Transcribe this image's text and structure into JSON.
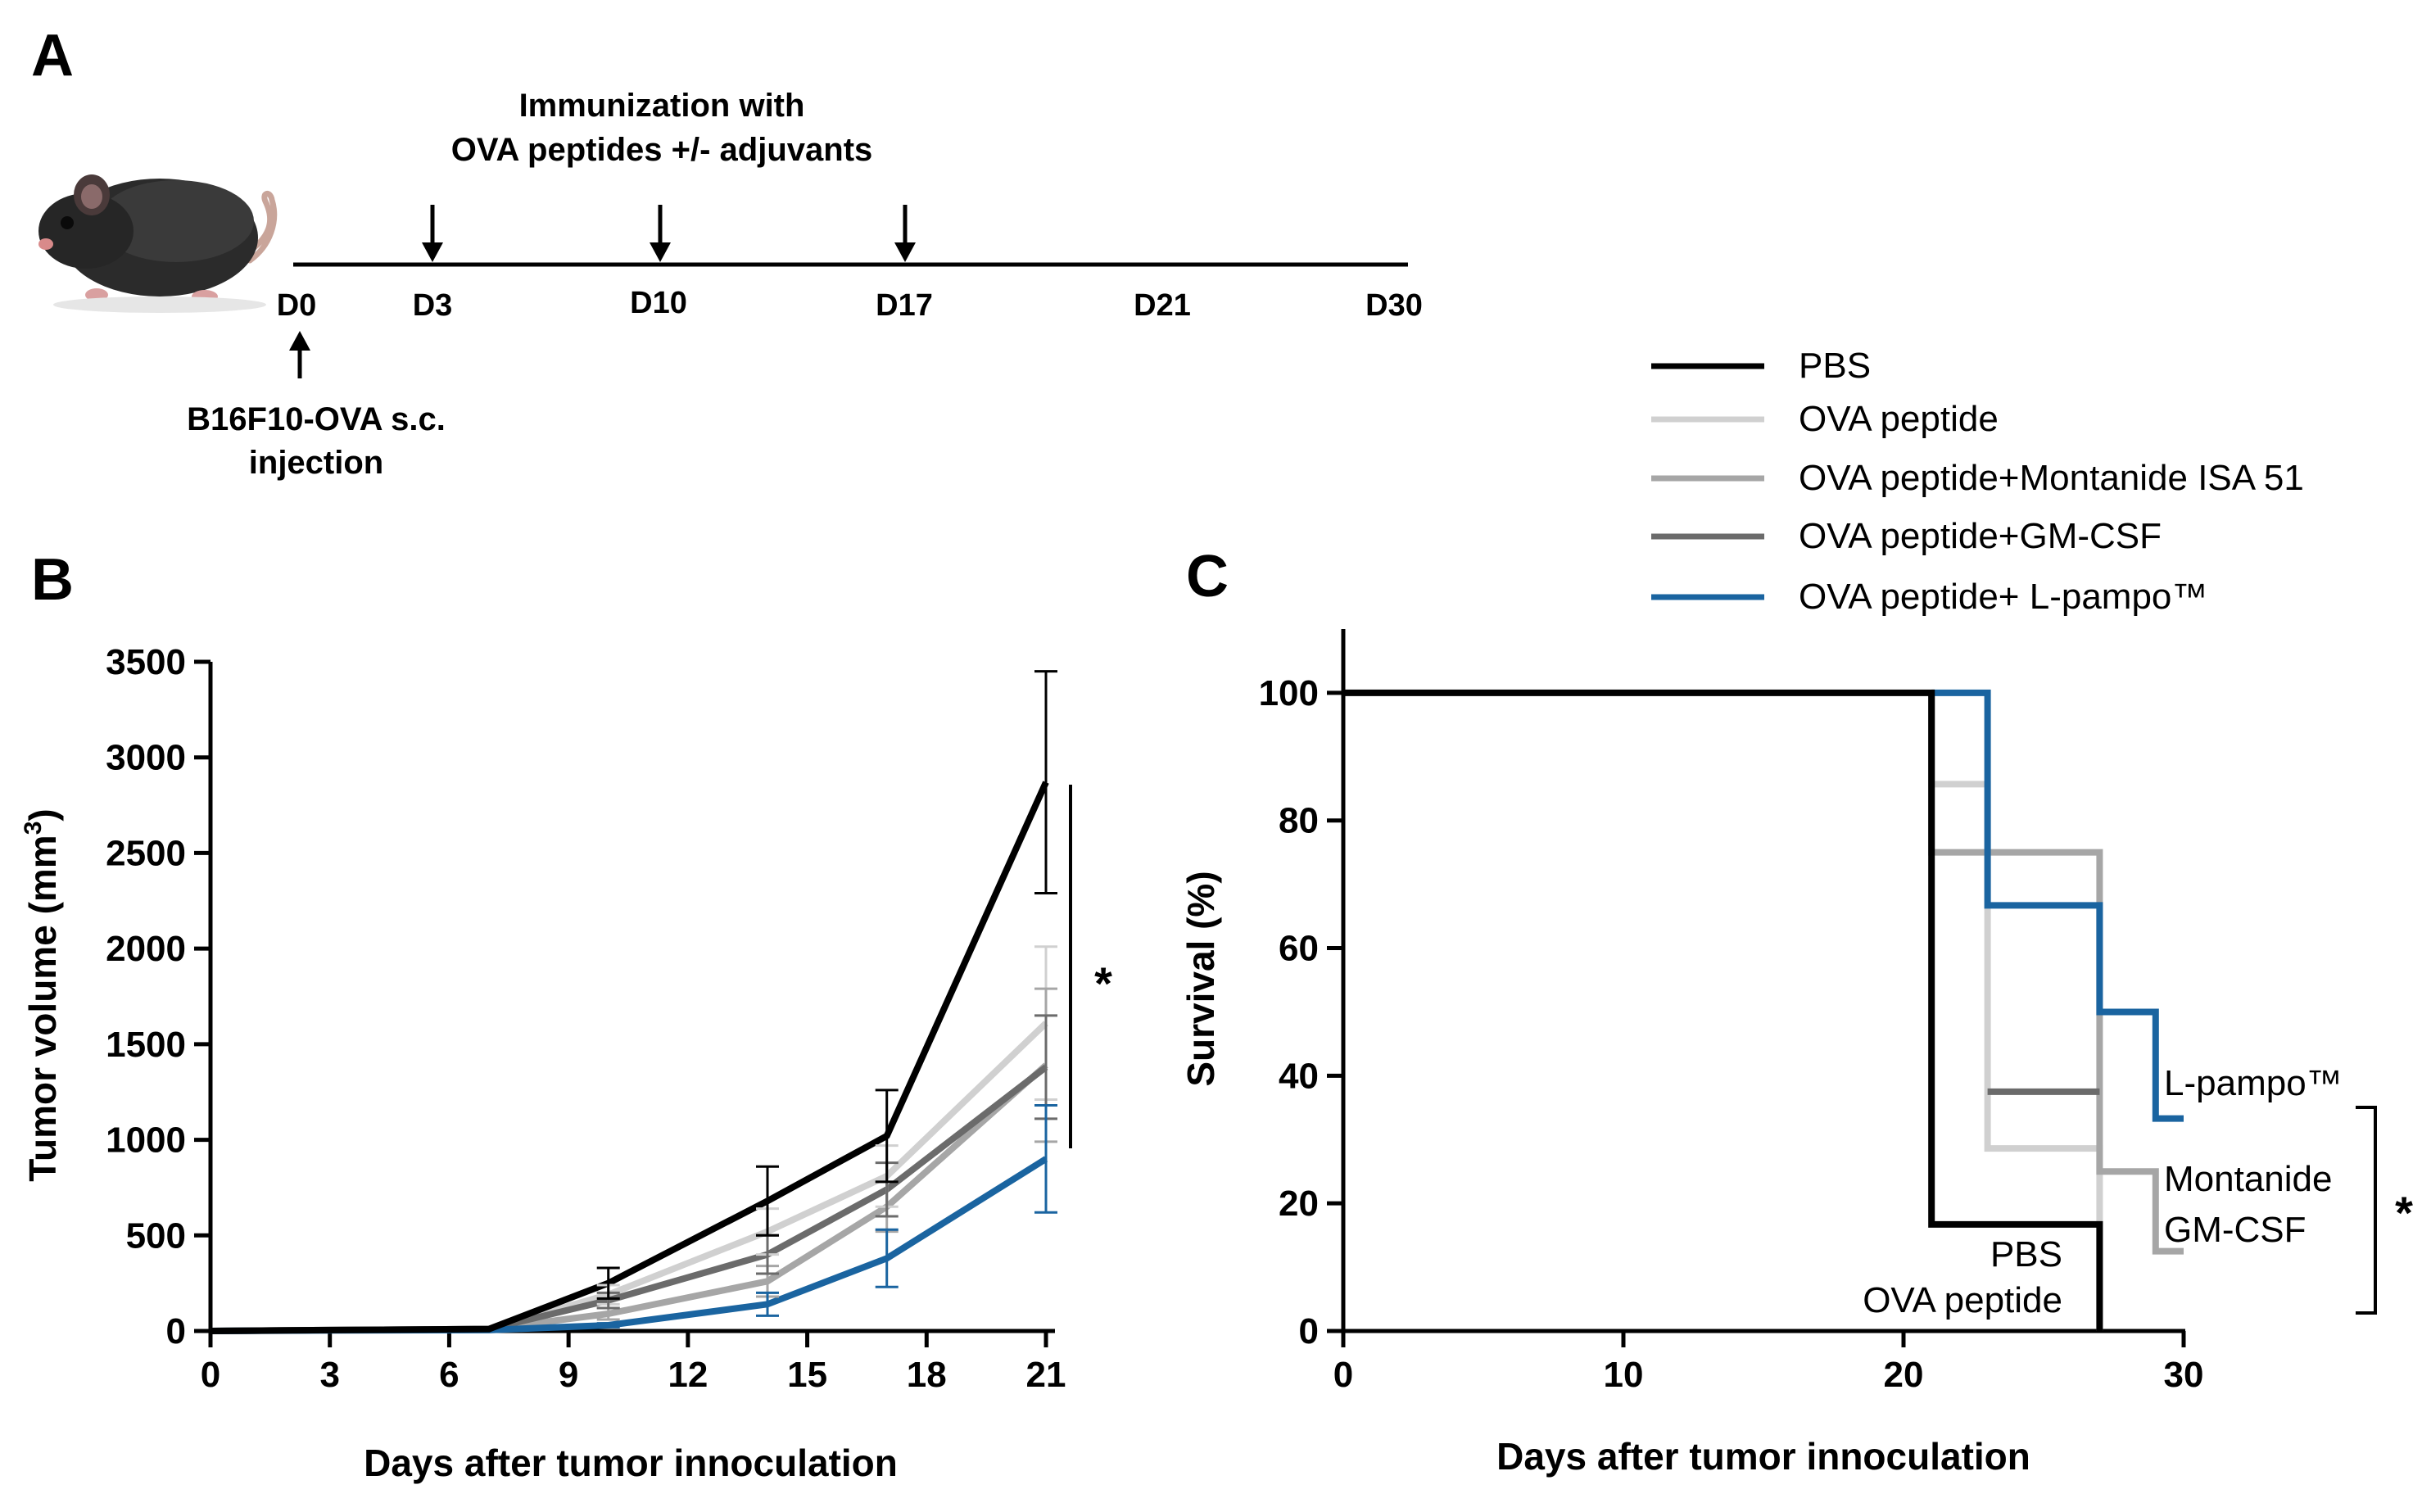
{
  "panel_a": {
    "letter": "A",
    "immunization_line1": "Immunization with",
    "immunization_line2": "OVA peptides +/- adjuvants",
    "days": [
      "D0",
      "D3",
      "D10",
      "D17",
      "D21",
      "D30"
    ],
    "injection_line1": "B16F10-OVA s.c.",
    "injection_line2": "injection",
    "mouse_icon": "mouse-icon"
  },
  "legend": [
    {
      "label": "PBS",
      "color": "#000000"
    },
    {
      "label": "OVA peptide",
      "color": "#d0d0d0"
    },
    {
      "label": "OVA peptide+Montanide ISA 51",
      "color": "#a6a6a6"
    },
    {
      "label": "OVA peptide+GM-CSF",
      "color": "#6b6b6b"
    },
    {
      "label": "OVA peptide+ L-pampo™",
      "color": "#1a64a0"
    }
  ],
  "chart_data": [
    {
      "panel": "B",
      "type": "line",
      "title": "",
      "xlabel": "Days after tumor innoculation",
      "ylabel": "Tumor volume (mm³)",
      "ylabel_main": "Tumor volume (mm",
      "ylabel_sup": "3",
      "ylabel_end": ")",
      "xlim": [
        0,
        21
      ],
      "ylim": [
        0,
        3500
      ],
      "xticks": [
        0,
        3,
        6,
        9,
        12,
        15,
        18,
        21
      ],
      "yticks": [
        0,
        500,
        1000,
        1500,
        2000,
        2500,
        3000,
        3500
      ],
      "x": [
        0,
        3,
        7,
        10,
        14,
        17,
        21
      ],
      "series": [
        {
          "name": "PBS",
          "color": "#000000",
          "values": [
            0,
            5,
            10,
            250,
            680,
            1020,
            2870
          ],
          "err": [
            0,
            0,
            0,
            80,
            180,
            240,
            580
          ]
        },
        {
          "name": "OVA peptide",
          "color": "#d0d0d0",
          "values": [
            0,
            5,
            10,
            190,
            520,
            810,
            1610
          ],
          "err": [
            0,
            0,
            0,
            50,
            120,
            160,
            400
          ]
        },
        {
          "name": "OVA peptide+Montanide ISA 51",
          "color": "#a6a6a6",
          "values": [
            0,
            5,
            10,
            90,
            260,
            650,
            1390
          ],
          "err": [
            0,
            0,
            0,
            30,
            80,
            130,
            400
          ]
        },
        {
          "name": "OVA peptide+GM-CSF",
          "color": "#6b6b6b",
          "values": [
            0,
            5,
            10,
            160,
            400,
            740,
            1380
          ],
          "err": [
            0,
            0,
            0,
            40,
            100,
            140,
            270
          ]
        },
        {
          "name": "OVA peptide+ L-pampo™",
          "color": "#1a64a0",
          "values": [
            0,
            3,
            5,
            30,
            140,
            380,
            900
          ],
          "err": [
            0,
            0,
            0,
            10,
            60,
            150,
            280
          ]
        }
      ],
      "significance": "*"
    },
    {
      "panel": "C",
      "type": "line",
      "step": true,
      "title": "",
      "xlabel": "Days after tumor innoculation",
      "ylabel": "Survival (%)",
      "xlim": [
        0,
        30
      ],
      "ylim": [
        0,
        110
      ],
      "xticks": [
        0,
        10,
        20,
        30
      ],
      "yticks": [
        0,
        20,
        40,
        60,
        80,
        100
      ],
      "series": [
        {
          "name": "PBS",
          "color": "#000000",
          "points": [
            [
              0,
              100
            ],
            [
              21,
              100
            ],
            [
              21,
              16.7
            ],
            [
              27,
              16.7
            ],
            [
              27,
              0
            ]
          ]
        },
        {
          "name": "OVA peptide",
          "color": "#d0d0d0",
          "points": [
            [
              21,
              100
            ],
            [
              21,
              85.7
            ],
            [
              23,
              85.7
            ],
            [
              23,
              28.6
            ],
            [
              27,
              28.6
            ],
            [
              27,
              0
            ]
          ]
        },
        {
          "name": "OVA peptide+Montanide ISA 51",
          "color": "#a6a6a6",
          "points": [
            [
              21,
              100
            ],
            [
              21,
              75
            ],
            [
              27,
              75
            ],
            [
              27,
              25
            ],
            [
              29,
              25
            ],
            [
              29,
              12.5
            ],
            [
              30,
              12.5
            ]
          ]
        },
        {
          "name": "OVA peptide+GM-CSF",
          "color": "#6b6b6b",
          "points": [
            [
              23,
              37.5
            ],
            [
              27,
              37.5
            ]
          ]
        },
        {
          "name": "OVA peptide+ L-pampo™",
          "color": "#1a64a0",
          "points": [
            [
              21,
              100
            ],
            [
              23,
              100
            ],
            [
              23,
              85.7
            ],
            [
              23,
              66.7
            ],
            [
              27,
              66.7
            ],
            [
              27,
              50
            ],
            [
              29,
              50
            ],
            [
              29,
              33.3
            ],
            [
              30,
              33.3
            ]
          ]
        }
      ],
      "annotations": {
        "l_pampo": "L-pampo™",
        "montanide": "Montanide",
        "gm_csf": "GM-CSF",
        "pbs": "PBS",
        "ova": "OVA peptide",
        "significance": "*"
      }
    }
  ]
}
